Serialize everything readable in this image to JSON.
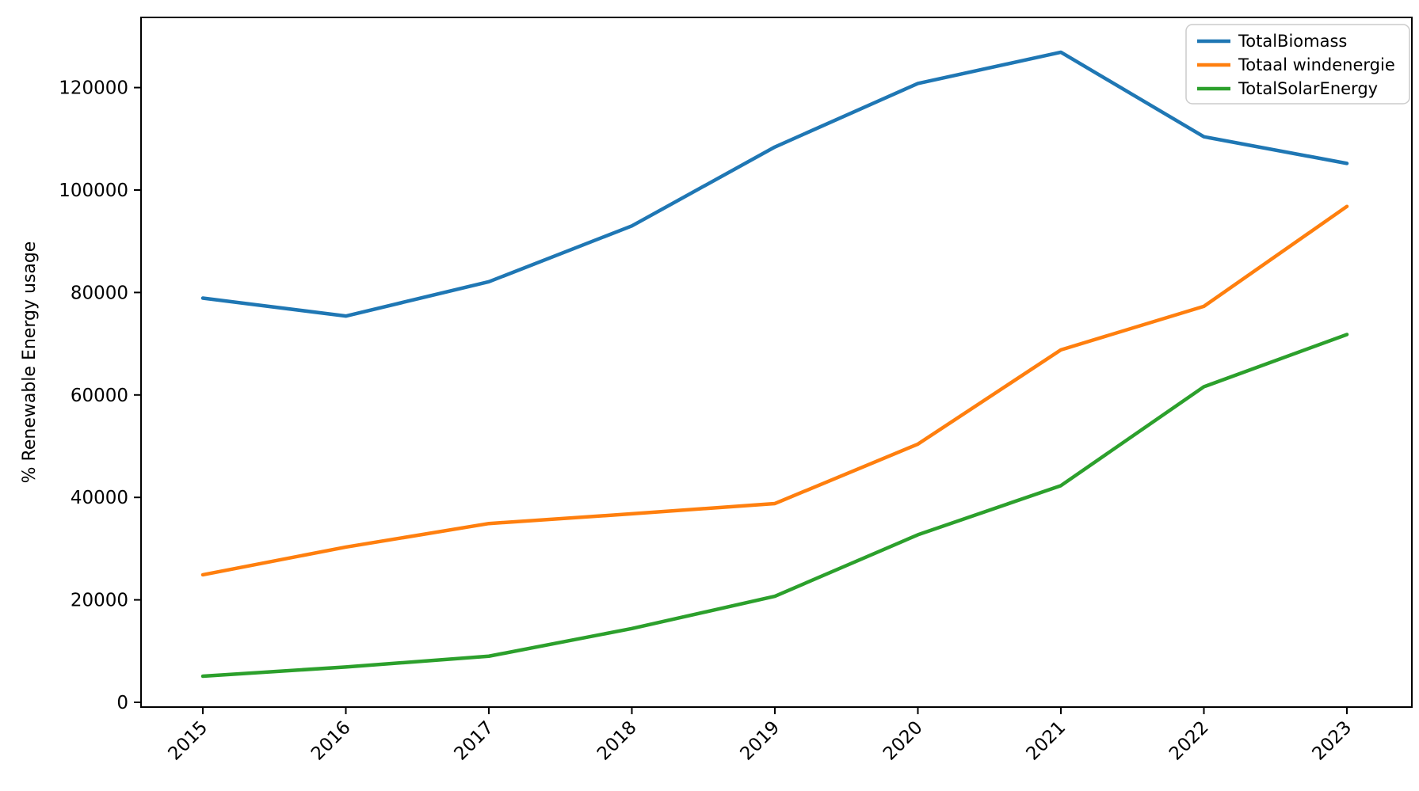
{
  "figure": {
    "background_color": "#ffffff",
    "axes_color": "#000000",
    "legend_border_color": "#cccccc"
  },
  "chart_data": {
    "type": "line",
    "title": "",
    "xlabel": "",
    "ylabel": "% Renewable Energy usage",
    "categories": [
      "2015",
      "2016",
      "2017",
      "2018",
      "2019",
      "2020",
      "2021",
      "2022",
      "2023"
    ],
    "yticks": [
      0,
      20000,
      40000,
      60000,
      80000,
      100000,
      120000
    ],
    "ytick_labels": [
      "0",
      "20000",
      "40000",
      "60000",
      "80000",
      "100000",
      "120000"
    ],
    "ylim": [
      -1000,
      133700
    ],
    "xtick_rotation_deg": 45,
    "grid": false,
    "legend_position": "upper right",
    "series": [
      {
        "name": "TotalBiomass",
        "color": "#1f77b4",
        "values": [
          78900,
          75400,
          82100,
          93000,
          108400,
          120800,
          126900,
          110400,
          105200
        ]
      },
      {
        "name": "Totaal windenergie",
        "color": "#ff7f0e",
        "values": [
          24900,
          30300,
          34900,
          36800,
          38800,
          50400,
          68800,
          77300,
          96800
        ]
      },
      {
        "name": "TotalSolarEnergy",
        "color": "#2ca02c",
        "values": [
          5100,
          6900,
          9000,
          14400,
          20700,
          32700,
          42300,
          61600,
          71800
        ]
      }
    ]
  }
}
